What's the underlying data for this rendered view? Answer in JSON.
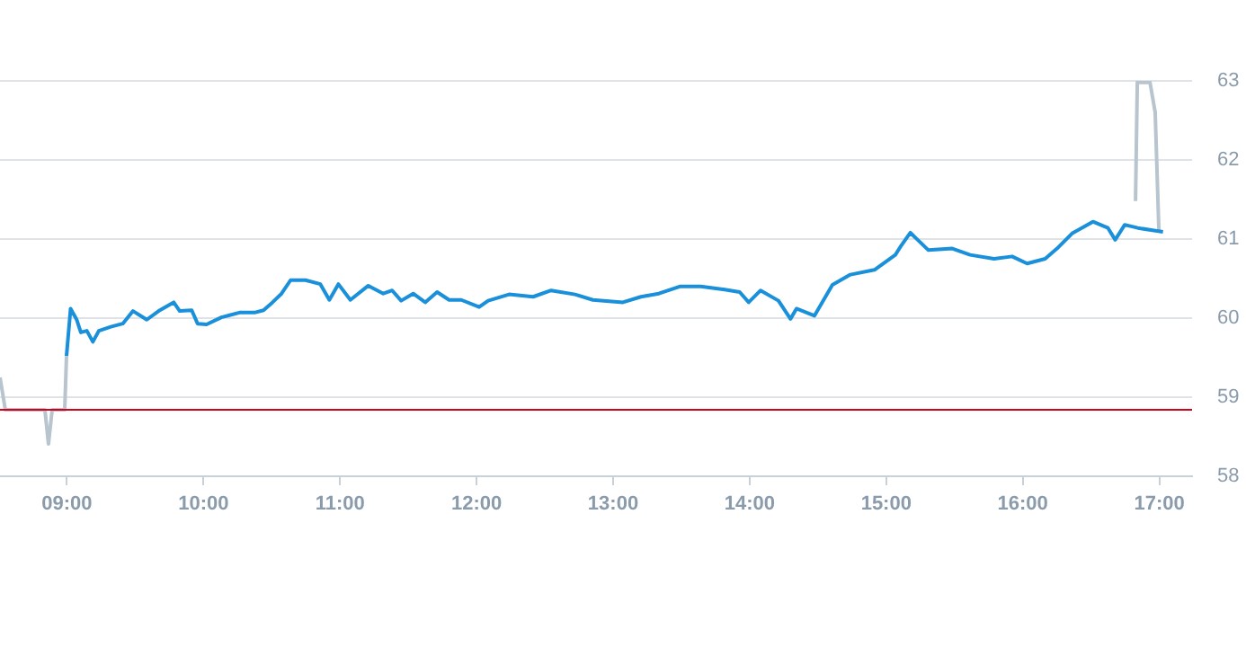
{
  "chart_data": {
    "type": "line",
    "xlim": [
      8.51,
      17.24
    ],
    "ylim": [
      58,
      63
    ],
    "xticks": [
      {
        "value": 9,
        "label": "09:00"
      },
      {
        "value": 10,
        "label": "10:00"
      },
      {
        "value": 11,
        "label": "11:00"
      },
      {
        "value": 12,
        "label": "12:00"
      },
      {
        "value": 13,
        "label": "13:00"
      },
      {
        "value": 14,
        "label": "14:00"
      },
      {
        "value": 15,
        "label": "15:00"
      },
      {
        "value": 16,
        "label": "16:00"
      },
      {
        "value": 17,
        "label": "17:00"
      }
    ],
    "yticks": [
      58,
      59,
      60,
      61,
      62,
      63
    ],
    "grid": "y",
    "legend": false,
    "marker": "none",
    "line_style": "solid",
    "ref_lines": [
      {
        "axis": "y",
        "value": 58.84,
        "color": "#d0021b"
      }
    ],
    "series": [
      {
        "color": "#b8c4ce",
        "x": [
          8.51,
          8.549,
          8.839,
          8.865,
          8.892,
          8.984,
          8.997
        ],
        "values": [
          59.25,
          58.84,
          58.84,
          58.41,
          58.84,
          58.84,
          59.52
        ]
      },
      {
        "color": "#1a90db",
        "x": [
          8.997,
          9.027,
          9.072,
          9.102,
          9.146,
          9.19,
          9.234,
          9.322,
          9.409,
          9.484,
          9.585,
          9.672,
          9.782,
          9.826,
          9.914,
          9.957,
          10.023,
          10.132,
          10.264,
          10.374,
          10.44,
          10.506,
          10.572,
          10.638,
          10.747,
          10.856,
          10.922,
          10.988,
          11.076,
          11.207,
          11.317,
          11.382,
          11.448,
          11.536,
          11.624,
          11.711,
          11.799,
          11.888,
          12.019,
          12.085,
          12.238,
          12.414,
          12.546,
          12.721,
          12.852,
          13.072,
          13.204,
          13.335,
          13.488,
          13.642,
          13.817,
          13.927,
          13.993,
          14.08,
          14.211,
          14.299,
          14.343,
          14.475,
          14.606,
          14.738,
          14.914,
          15.067,
          15.111,
          15.177,
          15.309,
          15.484,
          15.615,
          15.79,
          15.922,
          16.032,
          16.164,
          16.251,
          16.361,
          16.514,
          16.624,
          16.677,
          16.747,
          16.843,
          17.027
        ],
        "values": [
          59.52,
          60.12,
          59.98,
          59.82,
          59.84,
          59.7,
          59.84,
          59.89,
          59.93,
          60.09,
          59.98,
          60.09,
          60.2,
          60.09,
          60.1,
          59.93,
          59.92,
          60.01,
          60.07,
          60.07,
          60.1,
          60.2,
          60.31,
          60.48,
          60.48,
          60.43,
          60.23,
          60.43,
          60.23,
          60.41,
          60.31,
          60.35,
          60.22,
          60.31,
          60.2,
          60.33,
          60.23,
          60.23,
          60.14,
          60.22,
          60.3,
          60.27,
          60.35,
          60.3,
          60.23,
          60.2,
          60.27,
          60.31,
          60.4,
          60.4,
          60.36,
          60.33,
          60.2,
          60.35,
          60.22,
          59.99,
          60.12,
          60.03,
          60.42,
          60.55,
          60.61,
          60.8,
          60.92,
          61.08,
          60.86,
          60.88,
          60.8,
          60.75,
          60.78,
          60.69,
          60.75,
          60.88,
          61.07,
          61.22,
          61.14,
          60.99,
          61.18,
          61.14,
          61.09
        ]
      },
      {
        "color": "#b8c4ce",
        "x": [
          16.826,
          16.839,
          16.932,
          16.97,
          16.997
        ],
        "values": [
          61.48,
          62.98,
          62.98,
          62.6,
          61.11
        ]
      }
    ]
  }
}
